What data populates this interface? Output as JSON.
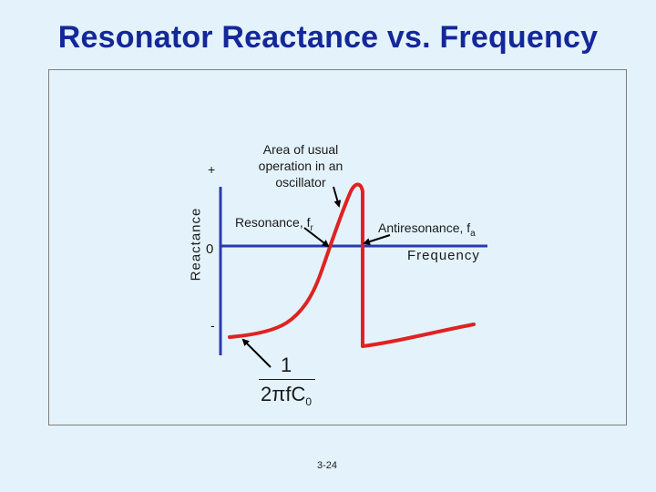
{
  "slide": {
    "title": "Resonator Reactance vs. Frequency",
    "page_number": "3-24"
  },
  "axes": {
    "y_label": "Reactance",
    "x_label": "Frequency",
    "plus_label": "+",
    "zero_label": "0",
    "minus_label": "-"
  },
  "annotations": {
    "operation_area": "Area of usual operation in an oscillator",
    "resonance_text": "Resonance, f",
    "resonance_sub": "r",
    "antiresonance_text": "Antiresonance, f",
    "antiresonance_sub": "a"
  },
  "formula": {
    "numerator": "1",
    "denominator": "2πfC",
    "denominator_sub": "0"
  },
  "colors": {
    "title": "#14289a",
    "axis": "#2b3ab0",
    "curve": "#e02222",
    "background": "#e4f3fb"
  }
}
